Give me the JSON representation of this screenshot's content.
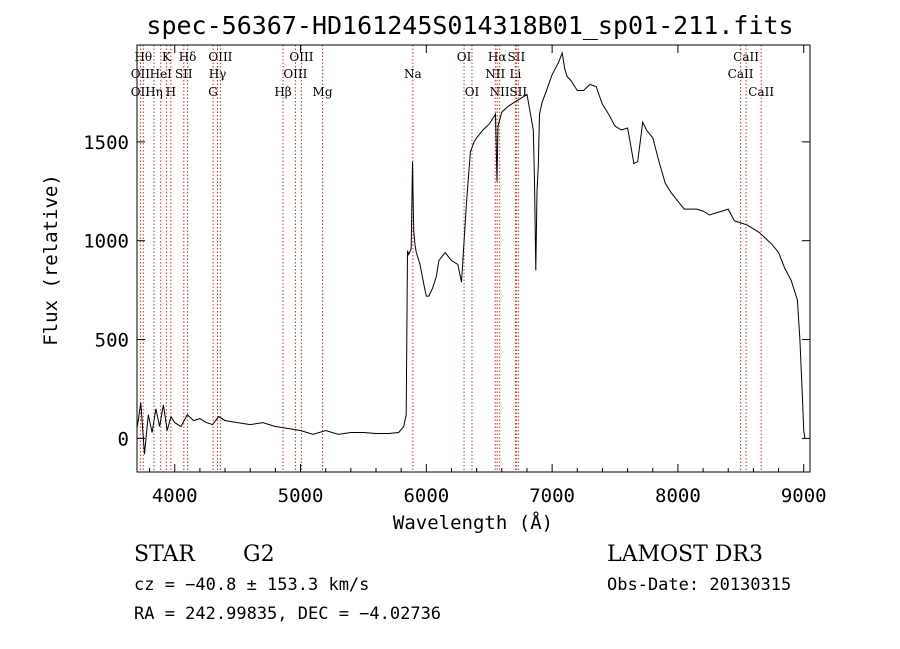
{
  "title": "spec-56367-HD161245S014318B01_sp01-211.fits",
  "info": {
    "class": "STAR",
    "subclass": "G2",
    "cz": "cz = −40.8 ± 153.3 km/s",
    "radec": "RA = 242.99835, DEC =  −4.02736",
    "survey": "LAMOST DR3",
    "obsdate": "Obs-Date: 20130315"
  },
  "colors": {
    "spectrum": "#000000",
    "marker": "#c0392b",
    "axis": "#000000"
  },
  "chart_data": {
    "type": "line",
    "title": "spec-56367-HD161245S014318B01_sp01-211.fits",
    "xlabel": "Wavelength (Å)",
    "ylabel": "Flux (relative)",
    "xlim": [
      3700,
      9050
    ],
    "ylim": [
      -170,
      1990
    ],
    "xticks": [
      4000,
      5000,
      6000,
      7000,
      8000,
      9000
    ],
    "yticks": [
      0,
      500,
      1000,
      1500
    ],
    "grid": false,
    "series": [
      {
        "name": "",
        "x": [
          3700,
          3730,
          3760,
          3790,
          3820,
          3850,
          3880,
          3910,
          3940,
          3970,
          4000,
          4050,
          4100,
          4150,
          4200,
          4250,
          4300,
          4350,
          4400,
          4500,
          4600,
          4700,
          4800,
          4900,
          5000,
          5100,
          5200,
          5300,
          5400,
          5500,
          5600,
          5700,
          5780,
          5820,
          5840,
          5850,
          5860,
          5880,
          5890,
          5900,
          5910,
          5920,
          5950,
          5980,
          6000,
          6020,
          6050,
          6080,
          6100,
          6150,
          6200,
          6250,
          6280,
          6300,
          6320,
          6350,
          6380,
          6400,
          6450,
          6500,
          6550,
          6562,
          6570,
          6600,
          6650,
          6700,
          6750,
          6800,
          6850,
          6860,
          6870,
          6880,
          6890,
          6900,
          6920,
          6950,
          7000,
          7050,
          7080,
          7100,
          7120,
          7150,
          7200,
          7250,
          7300,
          7350,
          7400,
          7450,
          7500,
          7550,
          7600,
          7620,
          7650,
          7680,
          7700,
          7720,
          7750,
          7800,
          7850,
          7900,
          7950,
          8000,
          8050,
          8100,
          8150,
          8200,
          8250,
          8300,
          8350,
          8400,
          8450,
          8500,
          8550,
          8600,
          8650,
          8700,
          8750,
          8800,
          8850,
          8900,
          8950,
          8970,
          8990,
          9000,
          9010
        ],
        "y": [
          50,
          180,
          -80,
          120,
          30,
          150,
          60,
          170,
          40,
          110,
          80,
          60,
          120,
          90,
          100,
          80,
          70,
          110,
          90,
          80,
          70,
          80,
          60,
          50,
          40,
          20,
          40,
          20,
          30,
          30,
          25,
          25,
          30,
          60,
          120,
          950,
          930,
          960,
          1400,
          1050,
          980,
          940,
          880,
          780,
          720,
          720,
          760,
          820,
          900,
          940,
          900,
          880,
          790,
          1000,
          1200,
          1450,
          1500,
          1520,
          1560,
          1590,
          1640,
          1300,
          1580,
          1650,
          1680,
          1700,
          1720,
          1740,
          1560,
          1300,
          850,
          1250,
          1380,
          1640,
          1700,
          1750,
          1840,
          1900,
          1950,
          1870,
          1830,
          1810,
          1760,
          1760,
          1790,
          1780,
          1690,
          1640,
          1580,
          1560,
          1570,
          1500,
          1390,
          1400,
          1500,
          1600,
          1560,
          1520,
          1400,
          1290,
          1240,
          1200,
          1160,
          1160,
          1160,
          1150,
          1130,
          1140,
          1150,
          1160,
          1100,
          1090,
          1080,
          1060,
          1040,
          1010,
          980,
          940,
          860,
          800,
          700,
          500,
          200,
          40,
          0
        ]
      }
    ],
    "line_markers": [
      {
        "label": "Hθ",
        "x": 3750,
        "row": 1
      },
      {
        "label": "OII",
        "x": 3727,
        "row": 2
      },
      {
        "label": "OII",
        "x": 3727,
        "row": 3
      },
      {
        "label": "K",
        "x": 3934,
        "row": 1
      },
      {
        "label": "HeI",
        "x": 3889,
        "row": 2
      },
      {
        "label": "Hη",
        "x": 3835,
        "row": 3
      },
      {
        "label": "H",
        "x": 3969,
        "row": 3
      },
      {
        "label": "SII",
        "x": 4072,
        "row": 2
      },
      {
        "label": "Hδ",
        "x": 4102,
        "row": 1
      },
      {
        "label": "OIII",
        "x": 4363,
        "row": 1
      },
      {
        "label": "Hγ",
        "x": 4340,
        "row": 2
      },
      {
        "label": "G",
        "x": 4305,
        "row": 3
      },
      {
        "label": "OIII",
        "x": 5007,
        "row": 1
      },
      {
        "label": "OIII",
        "x": 4959,
        "row": 2
      },
      {
        "label": "Hβ",
        "x": 4861,
        "row": 3
      },
      {
        "label": "Mg",
        "x": 5175,
        "row": 3
      },
      {
        "label": "Na",
        "x": 5893,
        "row": 2
      },
      {
        "label": "OI",
        "x": 6300,
        "row": 1
      },
      {
        "label": "OI",
        "x": 6363,
        "row": 3
      },
      {
        "label": "Hα",
        "x": 6563,
        "row": 1
      },
      {
        "label": "SII",
        "x": 6716,
        "row": 1
      },
      {
        "label": "NII",
        "x": 6548,
        "row": 2
      },
      {
        "label": "Li",
        "x": 6708,
        "row": 2
      },
      {
        "label": "NII",
        "x": 6583,
        "row": 3
      },
      {
        "label": "SII",
        "x": 6731,
        "row": 3
      },
      {
        "label": "CaII",
        "x": 8542,
        "row": 1
      },
      {
        "label": "CaII",
        "x": 8498,
        "row": 2
      },
      {
        "label": "CaII",
        "x": 8662,
        "row": 3
      }
    ]
  }
}
